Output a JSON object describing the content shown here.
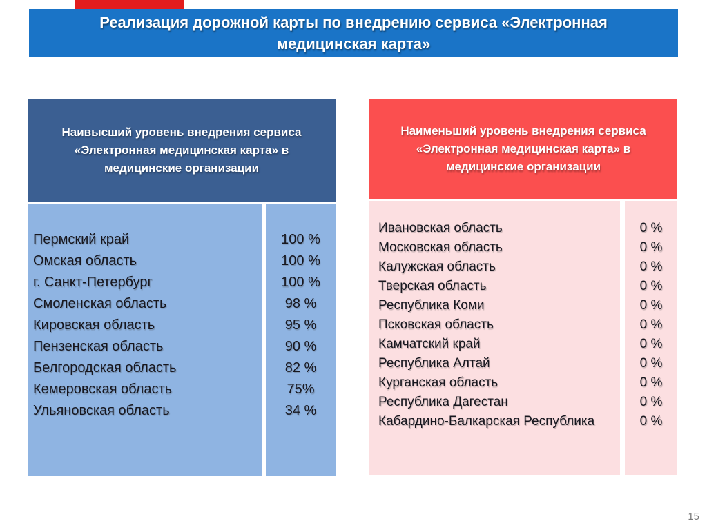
{
  "title": {
    "line1": "Реализация дорожной карты по внедрению сервиса «Электронная",
    "line2": "медицинская карта»"
  },
  "left_panel": {
    "header_lines": [
      "Наивысший уровень внедрения сервиса",
      "«Электронная медицинская карта» в",
      "медицинские организации"
    ],
    "rows": [
      {
        "region": "Пермский край",
        "value": "100 %"
      },
      {
        "region": "Омская область",
        "value": "100 %"
      },
      {
        "region": "г. Санкт-Петербург",
        "value": "100 %"
      },
      {
        "region": "Смоленская область",
        "value": "98 %"
      },
      {
        "region": "Кировская область",
        "value": "95 %"
      },
      {
        "region": "Пензенская область",
        "value": "90 %"
      },
      {
        "region": "Белгородская область",
        "value": "82 %"
      },
      {
        "region": "Кемеровская область",
        "value": "75%"
      },
      {
        "region": "Ульяновская область",
        "value": "34 %"
      }
    ]
  },
  "right_panel": {
    "header_lines": [
      "Наименьший уровень внедрения сервиса",
      "«Электронная медицинская карта» в",
      "медицинские организации"
    ],
    "rows": [
      {
        "region": "Ивановская область",
        "value": "0 %"
      },
      {
        "region": "Московская область",
        "value": "0 %"
      },
      {
        "region": "Калужская область",
        "value": "0 %"
      },
      {
        "region": "Тверская область",
        "value": "0 %"
      },
      {
        "region": "Республика Коми",
        "value": "0 %"
      },
      {
        "region": "Псковская область",
        "value": "0 %"
      },
      {
        "region": "Камчатский край",
        "value": "0 %"
      },
      {
        "region": "Республика Алтай",
        "value": "0 %"
      },
      {
        "region": "Курганская область",
        "value": "0 %"
      },
      {
        "region": "Республика Дагестан",
        "value": "0 %"
      },
      {
        "region": "Кабардино-Балкарская Республика",
        "value": "0 %"
      }
    ]
  },
  "page": {
    "number": "15"
  },
  "colors": {
    "title_bar_blue": "#1a74c7",
    "accent_red_tab": "#e21d1d",
    "left_header_bg": "#3b5f92",
    "left_body_bg": "#8fb4e2",
    "right_header_bg": "#fb4f4f",
    "right_body_bg": "#fcdfe1",
    "body_text": "#17171f",
    "page_number_gray": "#7a7a7a"
  }
}
